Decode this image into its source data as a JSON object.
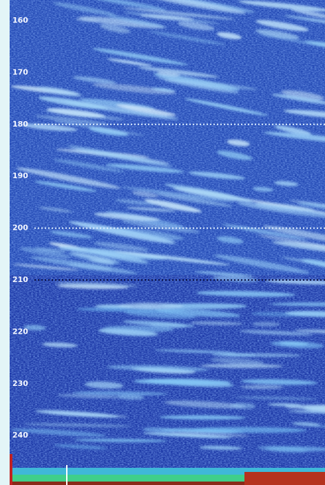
{
  "depth_scale": {
    "ticks": [
      160,
      170,
      180,
      190,
      200,
      210,
      220,
      230,
      240
    ]
  }
}
